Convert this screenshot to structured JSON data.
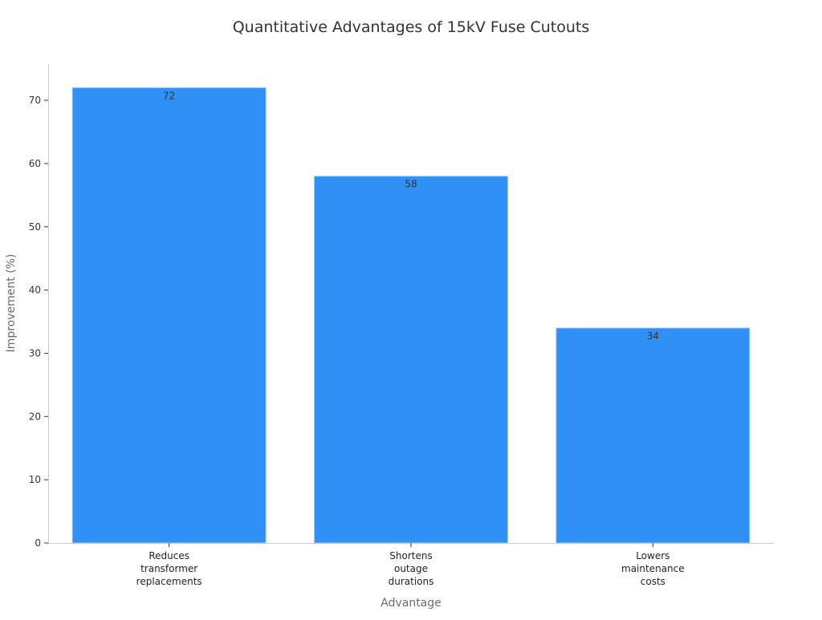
{
  "chart_data": {
    "type": "bar",
    "title": "Quantitative Advantages of 15kV Fuse Cutouts",
    "xlabel": "Advantage",
    "ylabel": "Improvement (%)",
    "categories": [
      [
        "Reduces",
        "transformer",
        "replacements"
      ],
      [
        "Shortens",
        "outage",
        "durations"
      ],
      [
        "Lowers",
        "maintenance",
        "costs"
      ]
    ],
    "values": [
      72,
      58,
      34
    ],
    "ylim": [
      0,
      76
    ],
    "yticks": [
      0,
      10,
      20,
      30,
      40,
      50,
      60,
      70
    ],
    "bar_color": "#2f91f7",
    "grid": false,
    "legend": "none",
    "data_labels": true
  }
}
